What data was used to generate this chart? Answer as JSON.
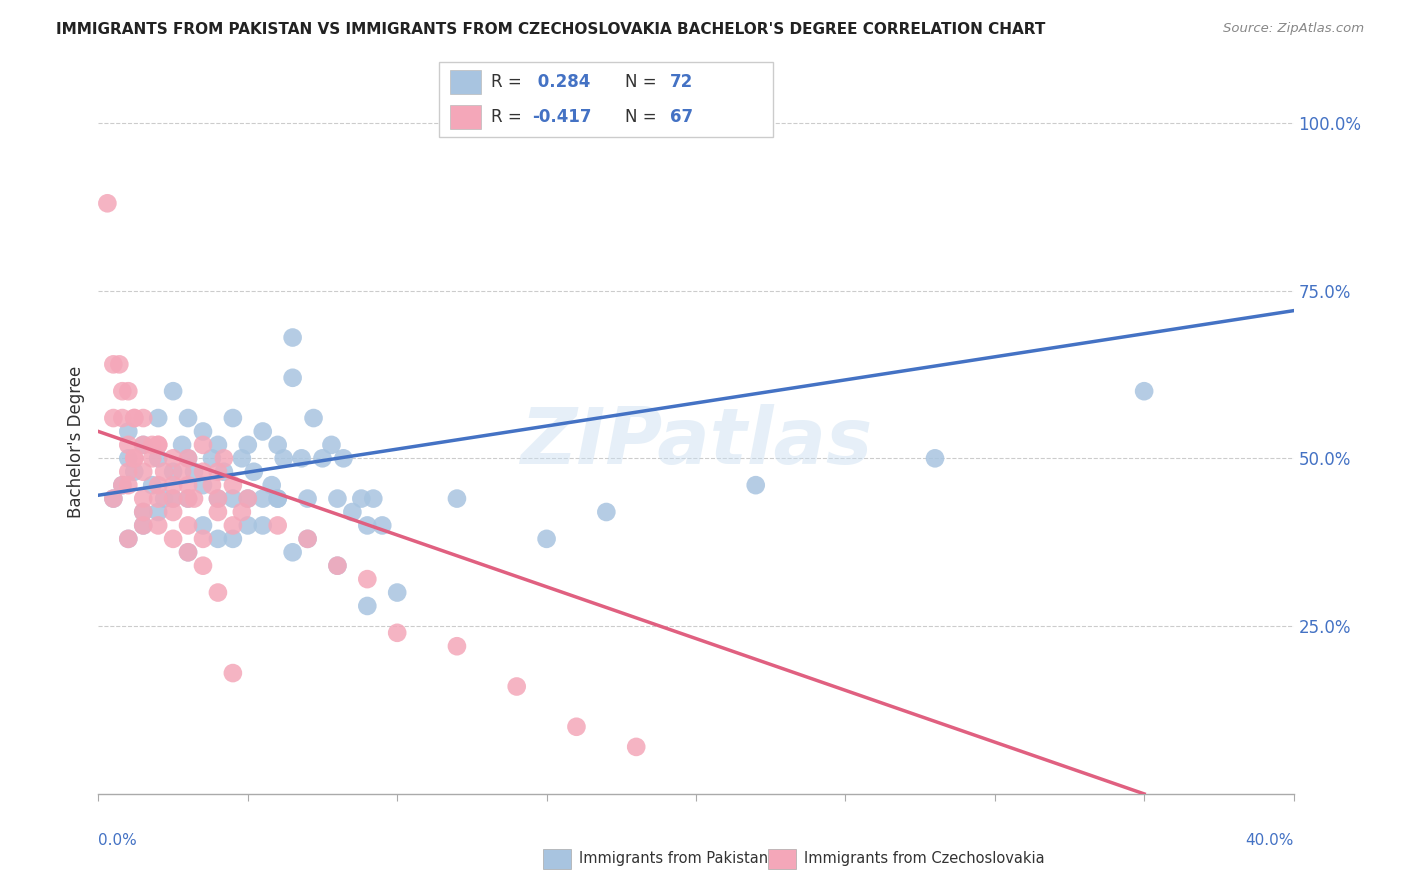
{
  "title": "IMMIGRANTS FROM PAKISTAN VS IMMIGRANTS FROM CZECHOSLOVAKIA BACHELOR'S DEGREE CORRELATION CHART",
  "source": "Source: ZipAtlas.com",
  "ylabel": "Bachelor's Degree",
  "xlim": [
    0.0,
    0.4
  ],
  "ylim": [
    0.0,
    1.05
  ],
  "color_pakistan": "#a8c4e0",
  "color_czech": "#f4a7b9",
  "line_color_pakistan": "#4472c4",
  "line_color_czech": "#e06080",
  "blue_color": "#4472c4",
  "watermark": "ZIPatlas",
  "pakistan_scatter_x": [
    0.005,
    0.008,
    0.01,
    0.01,
    0.012,
    0.015,
    0.015,
    0.018,
    0.02,
    0.02,
    0.022,
    0.025,
    0.025,
    0.028,
    0.03,
    0.03,
    0.03,
    0.032,
    0.035,
    0.035,
    0.038,
    0.04,
    0.04,
    0.042,
    0.045,
    0.045,
    0.048,
    0.05,
    0.05,
    0.052,
    0.055,
    0.055,
    0.058,
    0.06,
    0.06,
    0.062,
    0.065,
    0.065,
    0.068,
    0.07,
    0.072,
    0.075,
    0.078,
    0.08,
    0.082,
    0.085,
    0.088,
    0.09,
    0.092,
    0.095,
    0.01,
    0.015,
    0.02,
    0.025,
    0.03,
    0.035,
    0.04,
    0.045,
    0.05,
    0.055,
    0.06,
    0.065,
    0.07,
    0.08,
    0.09,
    0.1,
    0.15,
    0.22,
    0.17,
    0.12,
    0.28,
    0.35
  ],
  "pakistan_scatter_y": [
    0.44,
    0.46,
    0.5,
    0.54,
    0.48,
    0.42,
    0.52,
    0.46,
    0.5,
    0.56,
    0.44,
    0.48,
    0.6,
    0.52,
    0.44,
    0.5,
    0.56,
    0.48,
    0.46,
    0.54,
    0.5,
    0.44,
    0.52,
    0.48,
    0.44,
    0.56,
    0.5,
    0.44,
    0.52,
    0.48,
    0.44,
    0.54,
    0.46,
    0.44,
    0.52,
    0.5,
    0.62,
    0.68,
    0.5,
    0.44,
    0.56,
    0.5,
    0.52,
    0.44,
    0.5,
    0.42,
    0.44,
    0.4,
    0.44,
    0.4,
    0.38,
    0.4,
    0.42,
    0.44,
    0.36,
    0.4,
    0.38,
    0.38,
    0.4,
    0.4,
    0.44,
    0.36,
    0.38,
    0.34,
    0.28,
    0.3,
    0.38,
    0.46,
    0.42,
    0.44,
    0.5,
    0.6
  ],
  "czech_scatter_x": [
    0.003,
    0.005,
    0.007,
    0.008,
    0.01,
    0.01,
    0.012,
    0.012,
    0.015,
    0.015,
    0.015,
    0.018,
    0.02,
    0.02,
    0.022,
    0.025,
    0.025,
    0.028,
    0.03,
    0.03,
    0.032,
    0.035,
    0.035,
    0.038,
    0.04,
    0.04,
    0.042,
    0.045,
    0.048,
    0.05,
    0.01,
    0.015,
    0.02,
    0.025,
    0.03,
    0.035,
    0.04,
    0.045,
    0.005,
    0.008,
    0.01,
    0.012,
    0.015,
    0.018,
    0.02,
    0.025,
    0.03,
    0.06,
    0.07,
    0.08,
    0.09,
    0.1,
    0.12,
    0.14,
    0.16,
    0.18,
    0.005,
    0.008,
    0.01,
    0.012,
    0.015,
    0.02,
    0.025,
    0.03,
    0.035,
    0.04,
    0.045
  ],
  "czech_scatter_y": [
    0.88,
    0.64,
    0.64,
    0.56,
    0.52,
    0.48,
    0.5,
    0.56,
    0.52,
    0.48,
    0.44,
    0.5,
    0.46,
    0.52,
    0.48,
    0.5,
    0.44,
    0.48,
    0.46,
    0.5,
    0.44,
    0.48,
    0.52,
    0.46,
    0.48,
    0.44,
    0.5,
    0.46,
    0.42,
    0.44,
    0.38,
    0.4,
    0.44,
    0.42,
    0.4,
    0.38,
    0.42,
    0.4,
    0.56,
    0.6,
    0.6,
    0.56,
    0.56,
    0.52,
    0.52,
    0.46,
    0.44,
    0.4,
    0.38,
    0.34,
    0.32,
    0.24,
    0.22,
    0.16,
    0.1,
    0.07,
    0.44,
    0.46,
    0.46,
    0.5,
    0.42,
    0.4,
    0.38,
    0.36,
    0.34,
    0.3,
    0.18
  ],
  "pak_line_x": [
    0.0,
    0.4
  ],
  "pak_line_y": [
    0.445,
    0.72
  ],
  "cz_line_x": [
    0.0,
    0.35
  ],
  "cz_line_y": [
    0.54,
    0.0
  ],
  "leg_r_pak": "R =  0.284",
  "leg_n_pak": "N = 72",
  "leg_r_cz": "R = -0.417",
  "leg_n_cz": "N = 67"
}
